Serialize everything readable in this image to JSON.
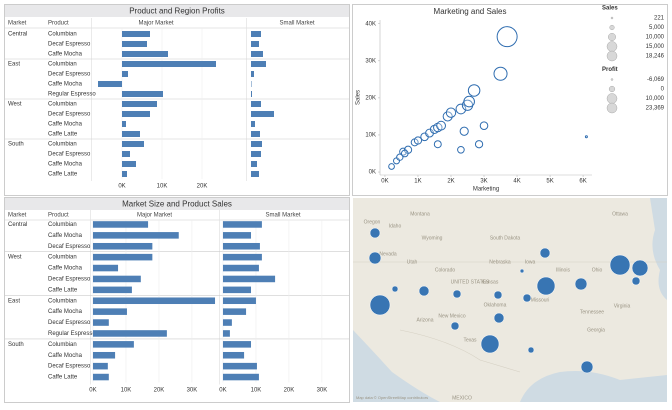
{
  "chart_data": [
    {
      "type": "bar-table",
      "title": "Product and Region Profits",
      "column_headers": [
        "Market",
        "Product"
      ],
      "markets": [
        "Central",
        null,
        null,
        "East",
        null,
        null,
        null,
        "West",
        null,
        null,
        null,
        "South",
        null,
        null,
        null
      ],
      "categories": [
        "Columbian",
        "Decaf Espresso",
        "Caffe Mocha",
        "Columbian",
        "Decaf Espresso",
        "Caffe Mocha",
        "Regular Espresso",
        "Columbian",
        "Decaf Espresso",
        "Caffe Mocha",
        "Caffe Latte",
        "Columbian",
        "Decaf Espresso",
        "Caffe Mocha",
        "Caffe Latte"
      ],
      "series": [
        {
          "name": "Major Market",
          "color": "#4e7fb5",
          "xlim": [
            -7500,
            24500
          ],
          "xticks": [
            {
              "value": 0,
              "label": "0K"
            },
            {
              "value": 10000,
              "label": "10K"
            },
            {
              "value": 20000,
              "label": "20K"
            }
          ],
          "values": [
            7000,
            6250,
            11500,
            23500,
            1500,
            -6000,
            10250,
            8750,
            7000,
            1000,
            4500,
            5500,
            2000,
            3500,
            1250
          ]
        },
        {
          "name": "Small Market",
          "color": "#4e7fb5",
          "xlim": [
            -750,
            23750
          ],
          "values": [
            2500,
            2000,
            3000,
            3750,
            750,
            125,
            250,
            2500,
            5750,
            1000,
            2250,
            2750,
            2500,
            1500,
            2000
          ]
        }
      ]
    },
    {
      "type": "scatter",
      "title": "Marketing and Sales",
      "x_label": "Marketing",
      "y_label": "Sales",
      "color": "#2f6db0",
      "x": [
        200,
        350,
        450,
        550,
        700,
        600,
        900,
        1000,
        1200,
        1350,
        1500,
        1600,
        1700,
        1900,
        2000,
        2300,
        2500,
        2550,
        2700,
        2400,
        3000,
        2300,
        1600,
        2850,
        3500,
        3700,
        6100
      ],
      "values": [
        1500,
        3000,
        4000,
        5500,
        6000,
        5000,
        8000,
        8500,
        9500,
        10500,
        11500,
        12000,
        12500,
        15000,
        16000,
        17000,
        18000,
        19000,
        22000,
        11000,
        12500,
        6000,
        7500,
        7500,
        26500,
        36500,
        9500
      ],
      "sizes": [
        0,
        500,
        1000,
        2000,
        2500,
        1500,
        2000,
        2500,
        3000,
        3500,
        4000,
        4500,
        5000,
        5500,
        6000,
        6500,
        7500,
        8000,
        9500,
        4000,
        3000,
        1500,
        2000,
        2500,
        12000,
        23369,
        -6069
      ],
      "xlim": [
        -150,
        6270
      ],
      "ylim": [
        -800,
        41000
      ],
      "xticks": [
        {
          "value": 0,
          "label": "0K"
        },
        {
          "value": 1000,
          "label": "1K"
        },
        {
          "value": 2000,
          "label": "2K"
        },
        {
          "value": 3000,
          "label": "3K"
        },
        {
          "value": 4000,
          "label": "4K"
        },
        {
          "value": 5000,
          "label": "5K"
        },
        {
          "value": 6000,
          "label": "6K"
        }
      ],
      "yticks": [
        {
          "value": 0,
          "label": "0K"
        },
        {
          "value": 10000,
          "label": "10K"
        },
        {
          "value": 20000,
          "label": "20K"
        },
        {
          "value": 30000,
          "label": "30K"
        },
        {
          "value": 40000,
          "label": "40K"
        }
      ],
      "size_legends": [
        {
          "title": "Sales",
          "ticks": [
            221,
            {
              "value": 5000,
              "label": "5,000"
            },
            {
              "value": 10000,
              "label": "10,000"
            },
            {
              "value": 15000,
              "label": "15,000"
            },
            {
              "value": 18246,
              "label": "18,246"
            }
          ]
        },
        {
          "title": "Profit",
          "ticks": [
            {
              "value": -6069,
              "label": "-6,069"
            },
            0,
            {
              "value": 10000,
              "label": "10,000"
            },
            {
              "value": 23369,
              "label": "23,369"
            }
          ]
        }
      ]
    },
    {
      "type": "bar-table",
      "title": "Market Size and Product Sales",
      "column_headers": [
        "Market",
        "Product"
      ],
      "markets": [
        "Central",
        null,
        null,
        "West",
        null,
        null,
        null,
        "East",
        null,
        null,
        null,
        "South",
        null,
        null,
        null
      ],
      "categories": [
        "Columbian",
        "Caffe Mocha",
        "Decaf Espresso",
        "Columbian",
        "Caffe Mocha",
        "Decaf Espresso",
        "Caffe Latte",
        "Columbian",
        "Caffe Mocha",
        "Decaf Espresso",
        "Regular Espresso",
        "Columbian",
        "Caffe Mocha",
        "Decaf Espresso",
        "Caffe Latte"
      ],
      "series": [
        {
          "name": "Major Market",
          "color": "#4e7fb5",
          "xlim": [
            -600,
            37900
          ],
          "xticks": [
            {
              "value": 0,
              "label": "0K"
            },
            {
              "value": 10000,
              "label": "10K"
            },
            {
              "value": 20000,
              "label": "20K"
            },
            {
              "value": 30000,
              "label": "30K"
            }
          ],
          "values": [
            16700,
            26000,
            18000,
            18000,
            7600,
            14500,
            11800,
            37000,
            10300,
            4800,
            22400,
            12400,
            6700,
            4500,
            4800
          ]
        },
        {
          "name": "Small Market",
          "color": "#4e7fb5",
          "xlim": [
            -600,
            37000
          ],
          "xticks": [
            {
              "value": 0,
              "label": "0K"
            },
            {
              "value": 10000,
              "label": "10K"
            },
            {
              "value": 20000,
              "label": "20K"
            },
            {
              "value": 30000,
              "label": "30K"
            }
          ],
          "values": [
            11800,
            8500,
            11200,
            11800,
            10900,
            15800,
            8500,
            10000,
            7000,
            2700,
            2100,
            8500,
            6400,
            10300,
            10900
          ]
        }
      ]
    }
  ],
  "map": {
    "labels": [
      "Oregon",
      "Idaho",
      "Montana",
      "Wyoming",
      "Nevada",
      "Utah",
      "Colorado",
      "South Dakota",
      "Nebraska",
      "UNITED STATES",
      "Kansas",
      "Arizona",
      "New Mexico",
      "Oklahoma",
      "Texas",
      "Iowa",
      "Missouri",
      "Illinois",
      "Ohio",
      "Tennessee",
      "Virginia",
      "Georgia",
      "Ottawa",
      "MEXICO"
    ],
    "attribution": "Map data © OpenStreetMap contributors"
  }
}
